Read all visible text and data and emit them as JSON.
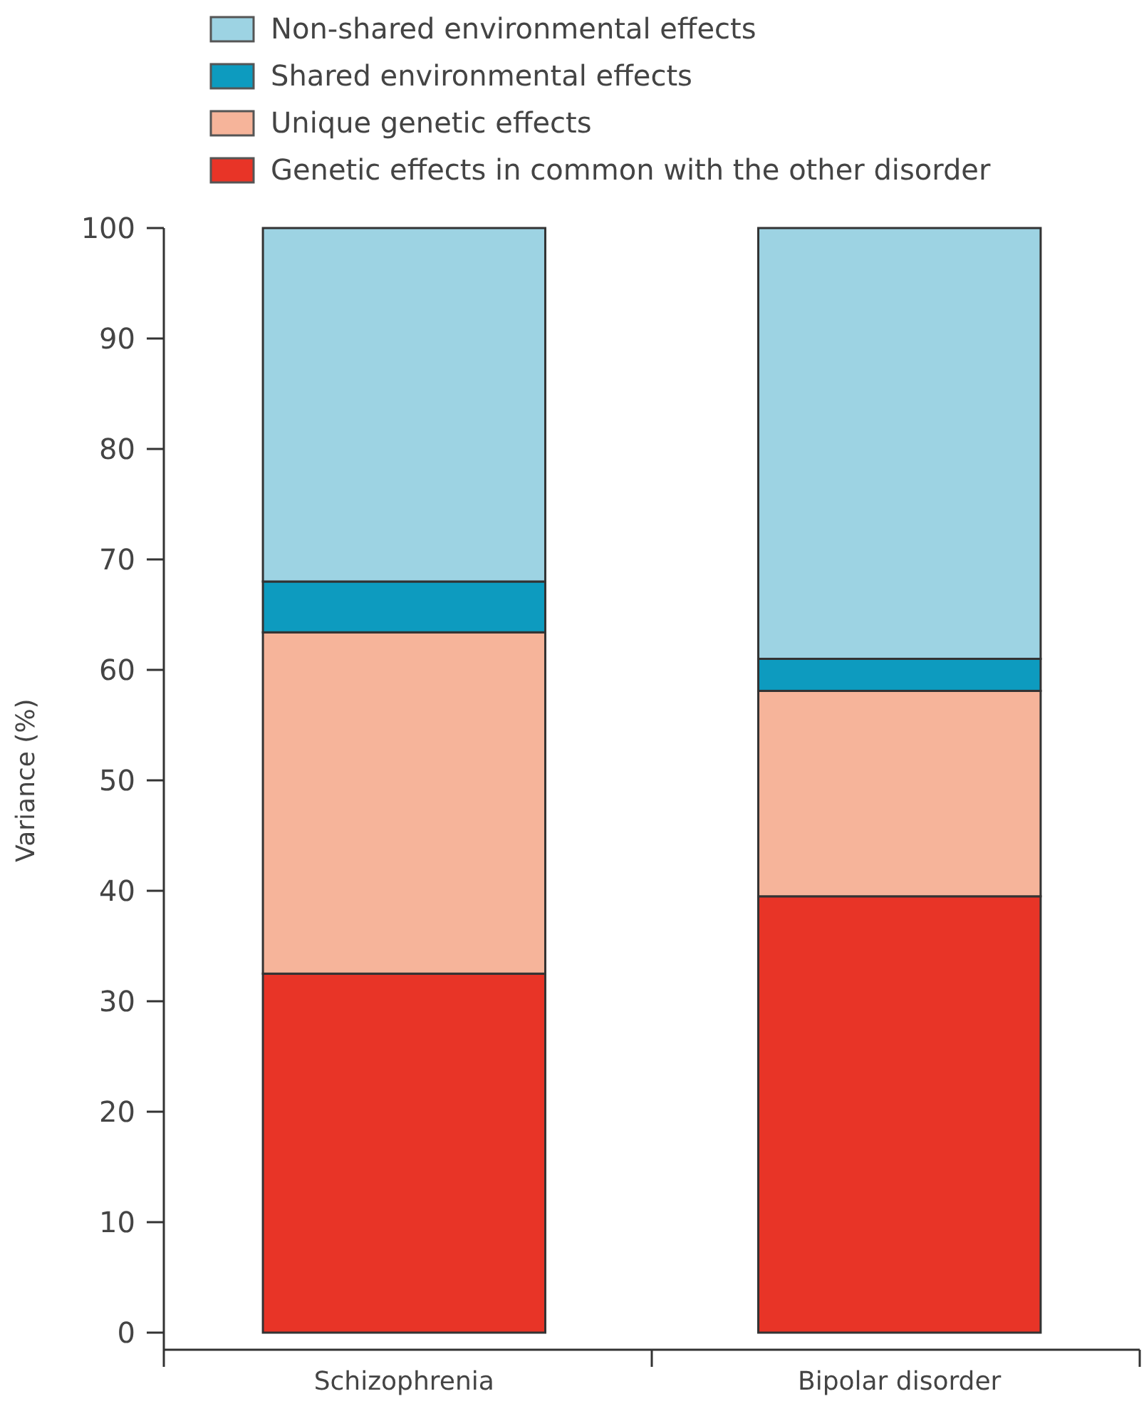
{
  "chart_data": {
    "type": "bar",
    "stacked": true,
    "ylabel": "Variance (%)",
    "categories": [
      "Schizophrenia",
      "Bipolar disorder"
    ],
    "series": [
      {
        "name": "Genetic effects in common with the other disorder",
        "color": "#e83427",
        "values": [
          32.5,
          39.5
        ]
      },
      {
        "name": "Unique genetic effects",
        "color": "#f6b49a",
        "values": [
          30.9,
          18.6
        ]
      },
      {
        "name": "Shared environmental effects",
        "color": "#0d9bbf",
        "values": [
          4.6,
          2.9
        ]
      },
      {
        "name": "Non-shared environmental effects",
        "color": "#9dd3e3",
        "values": [
          32,
          39
        ]
      }
    ],
    "ylim": [
      0,
      100
    ],
    "yticks": [
      0,
      10,
      20,
      30,
      40,
      50,
      60,
      70,
      80,
      90,
      100
    ],
    "legend": "top",
    "grid": false
  }
}
